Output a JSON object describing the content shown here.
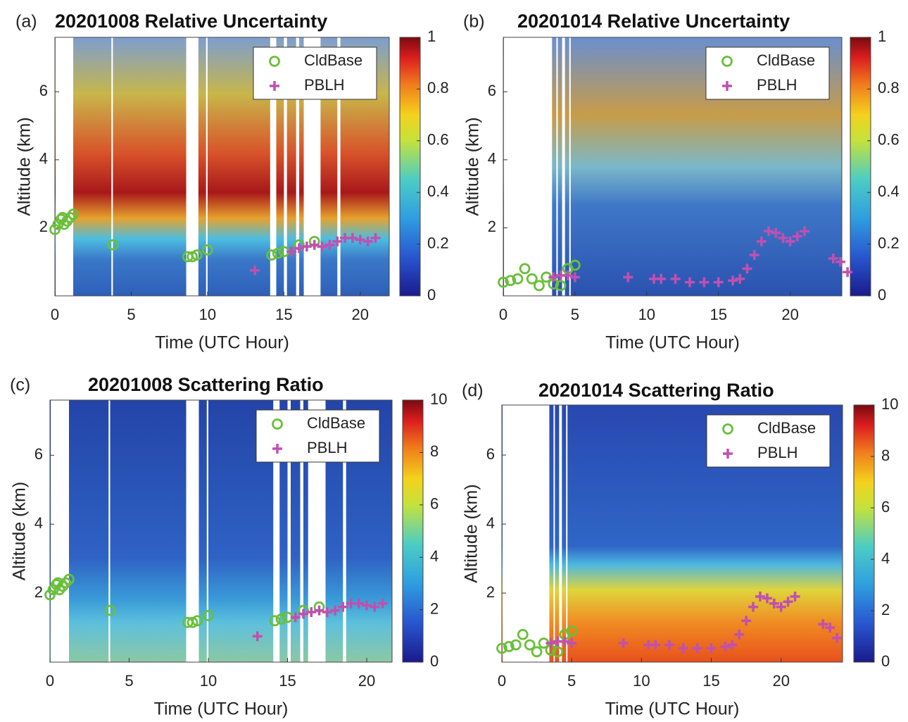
{
  "chart_data": [
    {
      "type": "scatter",
      "panel_label": "(a)",
      "title": "20201008 Relative Uncertainty",
      "xlabel": "Time (UTC Hour)",
      "ylabel": "Altitude (km)",
      "xlim": [
        0,
        21.9
      ],
      "xticks": [
        0,
        5,
        10,
        15,
        20
      ],
      "ylim": [
        0,
        7.6
      ],
      "yticks": [
        2,
        4,
        6
      ],
      "legend": "upper right",
      "colorbar": {
        "lim": [
          0,
          1
        ],
        "ticks": [
          0,
          0.2,
          0.4,
          0.6,
          0.8,
          1
        ]
      },
      "series": [
        {
          "name": "CldBase",
          "color": "#6abf3a",
          "marker": "circle",
          "x": [
            0,
            0.2,
            0.4,
            0.5,
            0.6,
            0.8,
            1.0,
            1.2,
            3.8,
            8.7,
            9.0,
            9.3,
            10.0,
            14.2,
            14.6,
            15.0,
            16.0,
            17.0
          ],
          "values": [
            1.95,
            2.1,
            2.25,
            2.3,
            2.1,
            2.2,
            2.3,
            2.4,
            1.5,
            1.15,
            1.15,
            1.2,
            1.35,
            1.2,
            1.25,
            1.3,
            1.5,
            1.6
          ]
        },
        {
          "name": "PBLH",
          "color": "#c050b0",
          "marker": "plus",
          "x": [
            13.1,
            15.5,
            16.0,
            16.5,
            17.0,
            17.5,
            18.0,
            18.5,
            19.0,
            19.5,
            20.0,
            20.5,
            21.0
          ],
          "values": [
            0.75,
            1.3,
            1.4,
            1.45,
            1.5,
            1.45,
            1.5,
            1.6,
            1.7,
            1.7,
            1.65,
            1.6,
            1.7
          ]
        }
      ]
    },
    {
      "type": "scatter",
      "panel_label": "(b)",
      "title": "20201014 Relative Uncertainty",
      "xlabel": "Time (UTC Hour)",
      "ylabel": "Altitude (km)",
      "xlim": [
        0,
        23.6
      ],
      "xticks": [
        0,
        5,
        10,
        15,
        20
      ],
      "ylim": [
        0,
        7.6
      ],
      "yticks": [
        2,
        4,
        6
      ],
      "legend": "upper right",
      "colorbar": {
        "lim": [
          0,
          1
        ],
        "ticks": [
          0,
          0.2,
          0.4,
          0.6,
          0.8,
          1
        ]
      },
      "series": [
        {
          "name": "CldBase",
          "color": "#6abf3a",
          "marker": "circle",
          "x": [
            0,
            0.5,
            1.0,
            1.5,
            2.0,
            2.5,
            3.0,
            3.5,
            4.0,
            4.5,
            5.0
          ],
          "values": [
            0.4,
            0.45,
            0.5,
            0.8,
            0.5,
            0.3,
            0.55,
            0.35,
            0.3,
            0.8,
            0.9
          ]
        },
        {
          "name": "PBLH",
          "color": "#c050b0",
          "marker": "plus",
          "x": [
            3.5,
            4.0,
            4.5,
            5.0,
            8.7,
            10.5,
            11.0,
            12.0,
            13.0,
            14.0,
            15.0,
            16.0,
            16.5,
            17.0,
            17.5,
            18.0,
            18.5,
            19.0,
            19.5,
            20.0,
            20.5,
            21.0,
            23.0,
            23.5,
            24.0
          ],
          "values": [
            0.55,
            0.6,
            0.6,
            0.55,
            0.55,
            0.5,
            0.5,
            0.5,
            0.4,
            0.4,
            0.4,
            0.45,
            0.5,
            0.8,
            1.2,
            1.6,
            1.9,
            1.85,
            1.7,
            1.6,
            1.75,
            1.9,
            1.1,
            1.0,
            0.7
          ]
        }
      ]
    },
    {
      "type": "scatter",
      "panel_label": "(c)",
      "title": "20201008 Scattering Ratio",
      "xlabel": "Time (UTC Hour)",
      "ylabel": "Altitude (km)",
      "xlim": [
        0,
        21.6
      ],
      "xticks": [
        0,
        5,
        10,
        15,
        20
      ],
      "ylim": [
        0,
        7.6
      ],
      "yticks": [
        2,
        4,
        6
      ],
      "legend": "upper right",
      "colorbar": {
        "lim": [
          0,
          10
        ],
        "ticks": [
          0,
          2,
          4,
          6,
          8,
          10
        ]
      },
      "series": [
        {
          "name": "CldBase",
          "color": "#6abf3a",
          "marker": "circle",
          "x": [
            0,
            0.2,
            0.4,
            0.5,
            0.6,
            0.8,
            1.0,
            1.2,
            3.8,
            8.7,
            9.0,
            9.3,
            10.0,
            14.2,
            14.6,
            15.0,
            16.0,
            17.0
          ],
          "values": [
            1.95,
            2.1,
            2.25,
            2.3,
            2.1,
            2.2,
            2.3,
            2.4,
            1.5,
            1.15,
            1.15,
            1.2,
            1.35,
            1.2,
            1.25,
            1.3,
            1.5,
            1.6
          ]
        },
        {
          "name": "PBLH",
          "color": "#c050b0",
          "marker": "plus",
          "x": [
            13.1,
            15.5,
            16.0,
            16.5,
            17.0,
            17.5,
            18.0,
            18.5,
            19.0,
            19.5,
            20.0,
            20.5,
            21.0
          ],
          "values": [
            0.75,
            1.3,
            1.4,
            1.45,
            1.5,
            1.45,
            1.5,
            1.6,
            1.7,
            1.7,
            1.65,
            1.6,
            1.7
          ]
        }
      ]
    },
    {
      "type": "scatter",
      "panel_label": "(d)",
      "title": "20201014 Scattering Ratio",
      "xlabel": "Time (UTC Hour)",
      "ylabel": "Altitude (km)",
      "xlim": [
        0,
        24.4
      ],
      "xticks": [
        0,
        5,
        10,
        15,
        20
      ],
      "ylim": [
        0,
        7.45
      ],
      "yticks": [
        2,
        4,
        6
      ],
      "legend": "upper right",
      "colorbar": {
        "lim": [
          0,
          10
        ],
        "ticks": [
          0,
          2,
          4,
          6,
          8,
          10
        ]
      },
      "series": [
        {
          "name": "CldBase",
          "color": "#6abf3a",
          "marker": "circle",
          "x": [
            0,
            0.5,
            1.0,
            1.5,
            2.0,
            2.5,
            3.0,
            3.5,
            4.0,
            4.5,
            5.0
          ],
          "values": [
            0.4,
            0.45,
            0.5,
            0.8,
            0.5,
            0.3,
            0.55,
            0.35,
            0.3,
            0.8,
            0.9
          ]
        },
        {
          "name": "PBLH",
          "color": "#c050b0",
          "marker": "plus",
          "x": [
            3.5,
            4.0,
            4.5,
            5.0,
            8.7,
            10.5,
            11.0,
            12.0,
            13.0,
            14.0,
            15.0,
            16.0,
            16.5,
            17.0,
            17.5,
            18.0,
            18.5,
            19.0,
            19.5,
            20.0,
            20.5,
            21.0,
            23.0,
            23.5,
            24.0
          ],
          "values": [
            0.55,
            0.6,
            0.6,
            0.55,
            0.55,
            0.5,
            0.5,
            0.5,
            0.4,
            0.4,
            0.4,
            0.45,
            0.5,
            0.8,
            1.2,
            1.6,
            1.9,
            1.85,
            1.7,
            1.6,
            1.75,
            1.9,
            1.1,
            1.0,
            0.7
          ]
        }
      ]
    }
  ]
}
